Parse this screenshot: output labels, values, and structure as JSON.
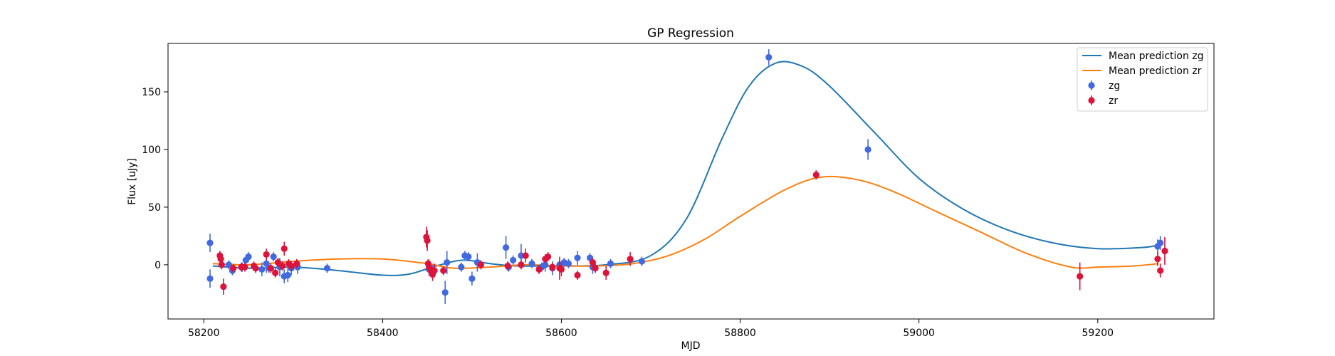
{
  "chart_data": {
    "type": "scatter",
    "title": "GP Regression",
    "xlabel": "MJD",
    "ylabel": "Flux [uJy]",
    "xlim": [
      58160,
      59330
    ],
    "ylim": [
      -47,
      192
    ],
    "xticks": [
      58200,
      58400,
      58600,
      58800,
      59000,
      59200
    ],
    "yticks": [
      0,
      50,
      100,
      150
    ],
    "grid": false,
    "legend_position": "top-right",
    "colors": {
      "zg_line": "#1f77b4",
      "zr_line": "#ff7f0e",
      "zg_points": "#4169e1",
      "zr_points": "#dc143c"
    },
    "lines": [
      {
        "name": "Mean prediction zg",
        "x": [
          58210,
          58250,
          58300,
          58350,
          58400,
          58430,
          58460,
          58490,
          58520,
          58550,
          58600,
          58650,
          58700,
          58740,
          58780,
          58810,
          58840,
          58870,
          58900,
          58950,
          59000,
          59050,
          59100,
          59150,
          59200,
          59250,
          59268
        ],
        "y": [
          -1,
          -3,
          -2,
          -5,
          -9,
          -8,
          -1,
          4,
          1,
          -1,
          -1,
          0,
          8,
          40,
          110,
          155,
          175,
          172,
          155,
          115,
          75,
          48,
          30,
          19,
          14,
          15,
          17
        ]
      },
      {
        "name": "Mean prediction zr",
        "x": [
          58210,
          58250,
          58300,
          58350,
          58400,
          58450,
          58480,
          58520,
          58560,
          58600,
          58640,
          58680,
          58720,
          58760,
          58800,
          58850,
          58890,
          58930,
          58970,
          59020,
          59070,
          59120,
          59170,
          59200,
          59240,
          59268
        ],
        "y": [
          1,
          0,
          3,
          5,
          5,
          1,
          -3,
          -2,
          0,
          -1,
          -1,
          1,
          8,
          22,
          42,
          65,
          76,
          74,
          64,
          46,
          28,
          10,
          -2,
          -2,
          -1,
          1
        ]
      }
    ],
    "series": [
      {
        "name": "zg",
        "x": [
          58207,
          58207,
          58228,
          58232,
          58243,
          58247,
          58250,
          58265,
          58270,
          58273,
          58278,
          58285,
          58290,
          58294,
          58298,
          58305,
          58338,
          58452,
          58456,
          58470,
          58472,
          58488,
          58492,
          58496,
          58500,
          58506,
          58538,
          58541,
          58546,
          58555,
          58567,
          58578,
          58582,
          58590,
          58598,
          58603,
          58608,
          58618,
          58632,
          58635,
          58655,
          58690,
          58832,
          58943,
          59267,
          59270
        ],
        "y": [
          19,
          -12,
          0,
          -5,
          -2,
          4,
          7,
          -4,
          1,
          -3,
          7,
          -2,
          -10,
          -9,
          -3,
          -2,
          -3,
          -4,
          -6,
          -24,
          2,
          -2,
          8,
          7,
          -12,
          2,
          15,
          -2,
          4,
          8,
          1,
          -2,
          0,
          -3,
          0,
          2,
          1,
          6,
          6,
          -2,
          1,
          3,
          180,
          100,
          16,
          19
        ],
        "yerr": [
          8,
          8,
          4,
          4,
          4,
          4,
          4,
          6,
          8,
          4,
          4,
          8,
          6,
          6,
          6,
          6,
          4,
          6,
          6,
          10,
          10,
          4,
          4,
          4,
          6,
          8,
          10,
          4,
          4,
          10,
          4,
          4,
          6,
          6,
          4,
          4,
          4,
          6,
          4,
          6,
          4,
          4,
          7,
          9,
          6,
          6
        ]
      },
      {
        "name": "zr",
        "x": [
          58218,
          58219,
          58220,
          58222,
          58233,
          58242,
          58246,
          58256,
          58258,
          58270,
          58275,
          58280,
          58283,
          58288,
          58290,
          58295,
          58298,
          58304,
          58449,
          58450,
          58451,
          58452,
          58454,
          58456,
          58458,
          58468,
          58510,
          58540,
          58555,
          58560,
          58575,
          58582,
          58585,
          58590,
          58598,
          58600,
          58618,
          58635,
          58638,
          58650,
          58677,
          58885,
          59180,
          59267,
          59270,
          59275
        ],
        "y": [
          8,
          5,
          0,
          -19,
          -3,
          -2,
          -2,
          -1,
          -3,
          9,
          -3,
          -7,
          2,
          -1,
          14,
          1,
          -1,
          1,
          24,
          21,
          1,
          -2,
          -5,
          -8,
          -5,
          -5,
          0,
          -1,
          0,
          8,
          -4,
          5,
          7,
          -2,
          -3,
          -4,
          -9,
          2,
          -3,
          -7,
          5,
          78,
          -10,
          5,
          -5,
          12
        ],
        "yerr": [
          4,
          4,
          4,
          7,
          4,
          4,
          4,
          4,
          4,
          5,
          4,
          4,
          4,
          4,
          6,
          4,
          4,
          4,
          9,
          9,
          4,
          6,
          6,
          6,
          6,
          4,
          4,
          4,
          4,
          6,
          4,
          4,
          4,
          4,
          10,
          6,
          4,
          4,
          4,
          6,
          6,
          4,
          12,
          6,
          6,
          12
        ]
      }
    ]
  }
}
